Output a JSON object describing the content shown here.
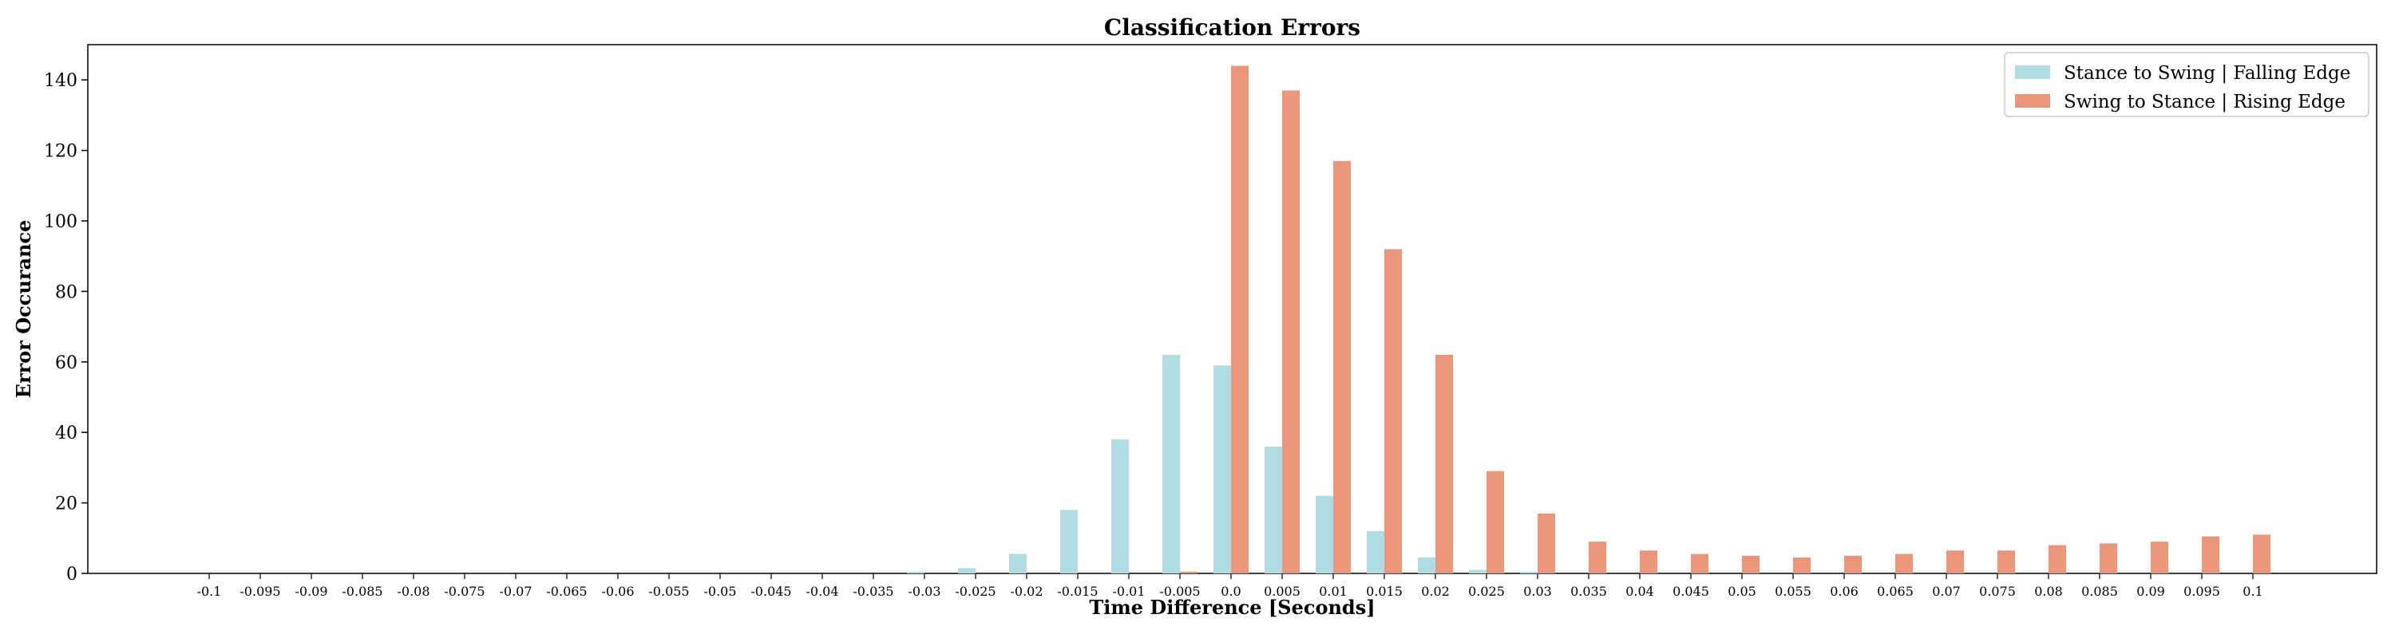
{
  "chart_data": {
    "type": "bar",
    "title": "Classification Errors",
    "xlabel": "Time Difference [Seconds]",
    "ylabel": "Error Occurance",
    "ylim": [
      0,
      150
    ],
    "yticks": [
      0,
      20,
      40,
      60,
      80,
      100,
      120,
      140
    ],
    "grid": false,
    "legend_position": "top-right",
    "categories": [
      "-0.1",
      "-0.095",
      "-0.09",
      "-0.085",
      "-0.08",
      "-0.075",
      "-0.07",
      "-0.065",
      "-0.06",
      "-0.055",
      "-0.05",
      "-0.045",
      "-0.04",
      "-0.035",
      "-0.03",
      "-0.025",
      "-0.02",
      "-0.015",
      "-0.01",
      "-0.005",
      "0.0",
      "0.005",
      "0.01",
      "0.015",
      "0.02",
      "0.025",
      "0.03",
      "0.035",
      "0.04",
      "0.045",
      "0.05",
      "0.055",
      "0.06",
      "0.065",
      "0.07",
      "0.075",
      "0.08",
      "0.085",
      "0.09",
      "0.095",
      "0.1"
    ],
    "series": [
      {
        "name": "Stance to Swing | Falling Edge",
        "color": "#b0dde4",
        "values": [
          0,
          0,
          0,
          0,
          0,
          0,
          0,
          0,
          0,
          0,
          0,
          0,
          0,
          0,
          0.5,
          1.5,
          5.5,
          18,
          38,
          62,
          59,
          36,
          22,
          12,
          4.5,
          1,
          0.5,
          0,
          0,
          0,
          0,
          0,
          0,
          0,
          0,
          0,
          0,
          0,
          0,
          0,
          0
        ]
      },
      {
        "name": "Swing to Stance | Rising Edge",
        "color": "#e9967a",
        "values": [
          0,
          0,
          0,
          0,
          0,
          0,
          0,
          0,
          0,
          0,
          0,
          0,
          0,
          0,
          0,
          0,
          0,
          0,
          0,
          0.5,
          144,
          137,
          117,
          92,
          62,
          29,
          17,
          9,
          6.5,
          5.5,
          5,
          4.5,
          5,
          5.5,
          6.5,
          6.5,
          8,
          8.5,
          9,
          10.5,
          11
        ]
      }
    ]
  }
}
